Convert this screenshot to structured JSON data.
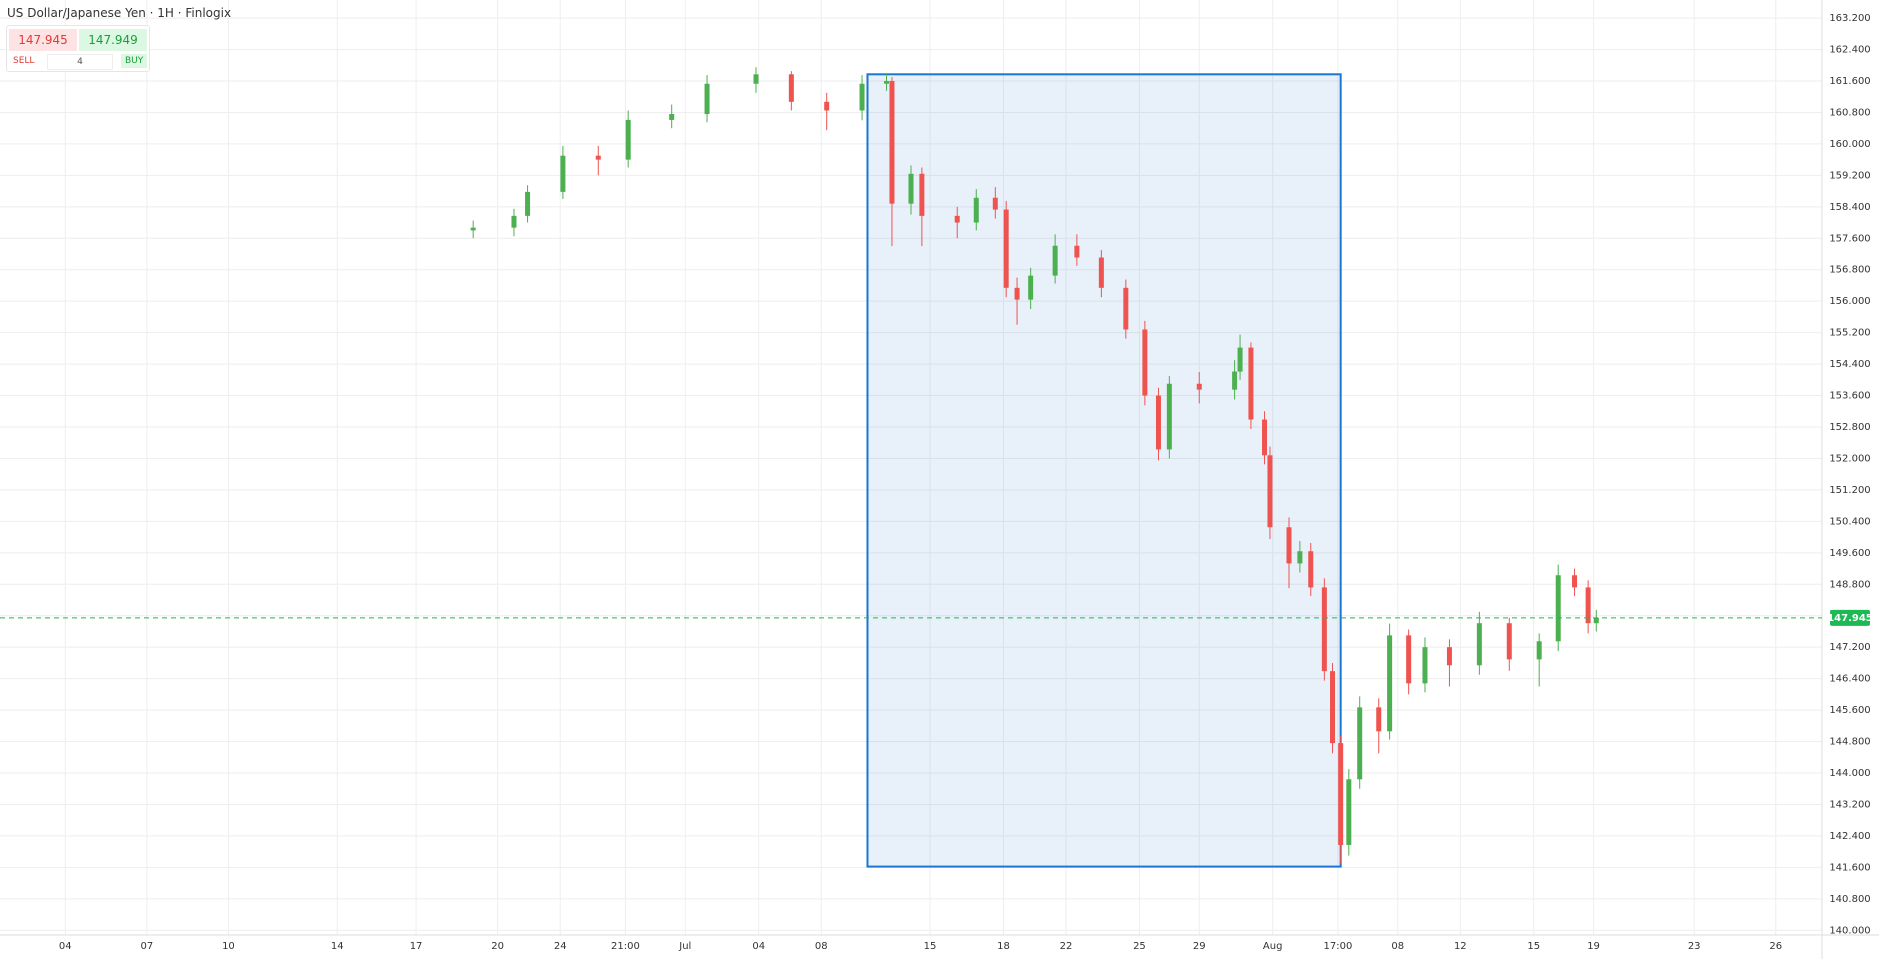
{
  "title": "US Dollar/Japanese Yen · 1H · Finlogix",
  "ticker_panel": {
    "sell_price": "147.945",
    "buy_price": "147.949",
    "sell_label": "SELL",
    "buy_label": "BUY",
    "quantity": "4"
  },
  "chart_data": {
    "type": "candlestick",
    "x": [
      17.4,
      18.9,
      19.4,
      20.7,
      22.0,
      23.1,
      24.7,
      26.0,
      27.8,
      29.1,
      30.4,
      31.7,
      32.6,
      32.8,
      33.5,
      33.9,
      35.2,
      35.9,
      36.6,
      37.0,
      37.4,
      37.9,
      38.8,
      39.6,
      40.5,
      41.4,
      42.1,
      42.6,
      43.0,
      44.1,
      45.4,
      45.6,
      46.0,
      46.5,
      46.7,
      47.4,
      47.8,
      48.2,
      48.7,
      49.0,
      49.3,
      49.6,
      50.0,
      50.7,
      51.1,
      51.8,
      52.4,
      53.3,
      54.4,
      55.5,
      56.6,
      57.3,
      57.9,
      58.4,
      58.7
    ],
    "open": [
      157.8,
      157.87,
      158.17,
      158.78,
      159.7,
      159.6,
      160.61,
      160.76,
      161.53,
      161.77,
      161.07,
      160.85,
      161.53,
      161.6,
      158.48,
      159.24,
      158.17,
      158.0,
      158.63,
      158.33,
      156.34,
      156.04,
      156.65,
      157.41,
      157.11,
      156.34,
      155.28,
      153.6,
      152.23,
      153.9,
      153.75,
      154.21,
      154.82,
      152.99,
      152.08,
      150.25,
      149.33,
      149.64,
      148.72,
      146.59,
      144.76,
      142.17,
      143.84,
      145.67,
      145.06,
      147.5,
      146.28,
      147.2,
      146.74,
      147.81,
      146.89,
      147.35,
      149.03,
      148.72,
      147.81
    ],
    "high": [
      158.05,
      158.35,
      158.95,
      159.95,
      159.95,
      160.85,
      161.0,
      161.75,
      161.95,
      161.85,
      161.3,
      161.75,
      161.8,
      161.7,
      159.45,
      159.4,
      158.4,
      158.85,
      158.9,
      158.55,
      156.6,
      156.85,
      157.7,
      157.7,
      157.3,
      156.55,
      155.5,
      153.8,
      154.1,
      154.2,
      154.5,
      155.15,
      154.95,
      153.2,
      152.3,
      150.5,
      149.9,
      149.85,
      148.95,
      146.8,
      144.95,
      144.1,
      145.95,
      145.9,
      147.8,
      147.65,
      147.45,
      147.4,
      148.1,
      147.95,
      147.55,
      149.3,
      149.2,
      148.9,
      148.15
    ],
    "low": [
      157.6,
      157.65,
      158.0,
      158.6,
      159.2,
      159.4,
      160.4,
      160.55,
      161.3,
      160.85,
      160.35,
      160.6,
      161.35,
      157.4,
      158.2,
      157.4,
      157.6,
      157.8,
      158.1,
      156.1,
      155.4,
      155.8,
      156.45,
      156.9,
      156.1,
      155.05,
      153.35,
      151.95,
      152.0,
      153.4,
      153.5,
      154.0,
      152.75,
      151.85,
      149.95,
      148.7,
      149.1,
      148.5,
      146.35,
      144.5,
      141.7,
      141.9,
      143.6,
      144.5,
      144.85,
      146.0,
      146.05,
      146.2,
      146.5,
      146.6,
      146.2,
      147.1,
      148.5,
      147.55,
      147.6
    ],
    "close": [
      157.87,
      158.17,
      158.78,
      159.7,
      159.6,
      160.61,
      160.76,
      161.53,
      161.77,
      161.07,
      160.85,
      161.53,
      161.6,
      158.48,
      159.24,
      158.17,
      158.0,
      158.63,
      158.33,
      156.34,
      156.04,
      156.65,
      157.41,
      157.11,
      156.34,
      155.28,
      153.6,
      152.23,
      153.9,
      153.75,
      154.21,
      154.82,
      152.99,
      152.08,
      150.25,
      149.33,
      149.64,
      148.72,
      146.59,
      144.76,
      142.17,
      143.84,
      145.67,
      145.06,
      147.5,
      146.28,
      147.2,
      146.74,
      147.81,
      146.89,
      147.35,
      149.03,
      148.72,
      147.81,
      147.95
    ],
    "up_color": "#4caf50",
    "down_color": "#ef5350",
    "current_price": 147.945,
    "current_price_color": "#1db954",
    "highlight_region": {
      "x": [
        31.9,
        49.3
      ],
      "y": [
        141.62,
        161.77
      ],
      "color": "#1976d2"
    },
    "xlim": [
      0,
      67
    ],
    "xticks": [
      {
        "value": 2.4,
        "label": "04"
      },
      {
        "value": 5.4,
        "label": "07"
      },
      {
        "value": 8.4,
        "label": "10"
      },
      {
        "value": 12.4,
        "label": "14"
      },
      {
        "value": 15.3,
        "label": "17"
      },
      {
        "value": 18.3,
        "label": "20"
      },
      {
        "value": 20.6,
        "label": "24"
      },
      {
        "value": 23.0,
        "label": "21:00"
      },
      {
        "value": 25.2,
        "label": "Jul"
      },
      {
        "value": 27.9,
        "label": "04"
      },
      {
        "value": 30.2,
        "label": "08"
      },
      {
        "value": 34.2,
        "label": "15"
      },
      {
        "value": 36.9,
        "label": "18"
      },
      {
        "value": 39.2,
        "label": "22"
      },
      {
        "value": 41.9,
        "label": "25"
      },
      {
        "value": 44.1,
        "label": "29"
      },
      {
        "value": 46.8,
        "label": "Aug"
      },
      {
        "value": 49.2,
        "label": "17:00"
      },
      {
        "value": 51.4,
        "label": "08"
      },
      {
        "value": 53.7,
        "label": "12"
      },
      {
        "value": 56.4,
        "label": "15"
      },
      {
        "value": 58.6,
        "label": "19"
      },
      {
        "value": 62.3,
        "label": "23"
      },
      {
        "value": 65.3,
        "label": "26"
      }
    ],
    "ylim": [
      139.88,
      163.66
    ],
    "yticks": [
      {
        "value": 140.0,
        "label": "140.000"
      },
      {
        "value": 140.8,
        "label": "140.800"
      },
      {
        "value": 141.6,
        "label": "141.600"
      },
      {
        "value": 142.4,
        "label": "142.400"
      },
      {
        "value": 143.2,
        "label": "143.200"
      },
      {
        "value": 144.0,
        "label": "144.000"
      },
      {
        "value": 144.8,
        "label": "144.800"
      },
      {
        "value": 145.6,
        "label": "145.600"
      },
      {
        "value": 146.4,
        "label": "146.400"
      },
      {
        "value": 147.2,
        "label": "147.200"
      },
      {
        "value": 148.0,
        "label": "148.000"
      },
      {
        "value": 148.8,
        "label": "148.800"
      },
      {
        "value": 149.6,
        "label": "149.600"
      },
      {
        "value": 150.4,
        "label": "150.400"
      },
      {
        "value": 151.2,
        "label": "151.200"
      },
      {
        "value": 152.0,
        "label": "152.000"
      },
      {
        "value": 152.8,
        "label": "152.800"
      },
      {
        "value": 153.6,
        "label": "153.600"
      },
      {
        "value": 154.4,
        "label": "154.400"
      },
      {
        "value": 155.2,
        "label": "155.200"
      },
      {
        "value": 156.0,
        "label": "156.000"
      },
      {
        "value": 156.8,
        "label": "156.800"
      },
      {
        "value": 157.6,
        "label": "157.600"
      },
      {
        "value": 158.4,
        "label": "158.400"
      },
      {
        "value": 159.2,
        "label": "159.200"
      },
      {
        "value": 160.0,
        "label": "160.000"
      },
      {
        "value": 160.8,
        "label": "160.800"
      },
      {
        "value": 161.6,
        "label": "161.600"
      },
      {
        "value": 162.4,
        "label": "162.400"
      },
      {
        "value": 163.2,
        "label": "163.200"
      }
    ],
    "grid": true
  }
}
